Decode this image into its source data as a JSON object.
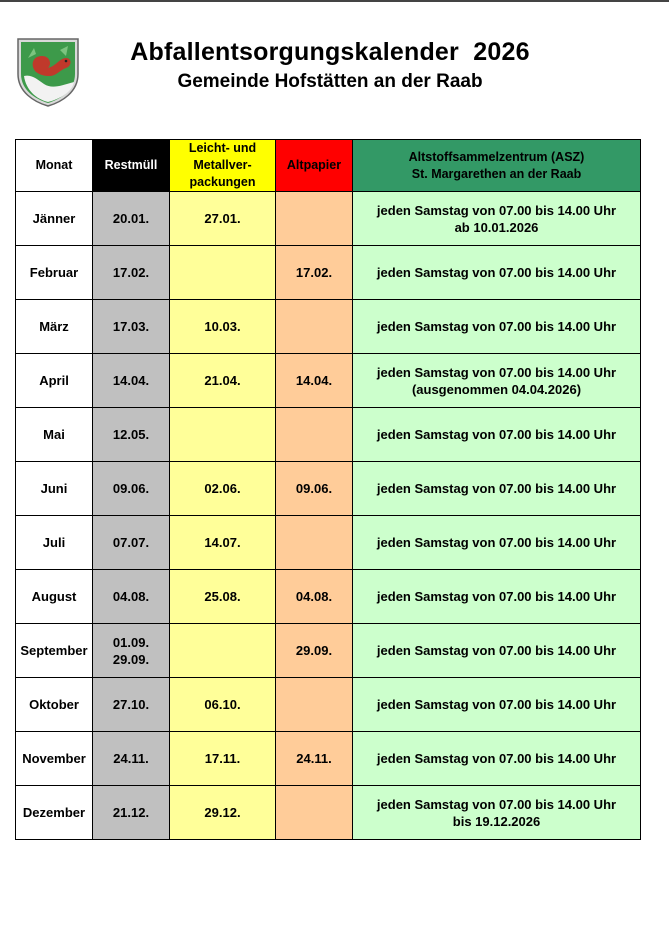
{
  "header": {
    "title": "Abfallentsorgungskalender  2026",
    "subtitle": "Gemeinde Hofstätten an der Raab"
  },
  "crest_icon": "municipal-coat-of-arms-squirrel-icon",
  "colors": {
    "restmuell_header": "#000000",
    "leicht_header": "#ffff00",
    "altpapier_header": "#ff0000",
    "asz_header": "#339966",
    "restmuell_cells": "#c0c0c0",
    "leicht_cells": "#ffff99",
    "altpapier_cells": "#ffcc99",
    "asz_cells": "#ccffcc"
  },
  "table": {
    "columns": {
      "monat": "Monat",
      "restmuell": "Restmüll",
      "leicht": [
        "Leicht- und",
        "Metallver-",
        "packungen"
      ],
      "altpapier": "Altpapier",
      "asz": [
        "Altstoffsammelzentrum (ASZ)",
        "St. Margarethen an der Raab"
      ]
    },
    "rows": [
      {
        "monat": "Jänner",
        "restmuell": [
          "20.01."
        ],
        "leicht": "27.01.",
        "altpapier": "",
        "asz": [
          "jeden Samstag von 07.00 bis 14.00 Uhr",
          "ab 10.01.2026"
        ]
      },
      {
        "monat": "Februar",
        "restmuell": [
          "17.02."
        ],
        "leicht": "",
        "altpapier": "17.02.",
        "asz": [
          "jeden Samstag von 07.00 bis 14.00 Uhr"
        ]
      },
      {
        "monat": "März",
        "restmuell": [
          "17.03."
        ],
        "leicht": "10.03.",
        "altpapier": "",
        "asz": [
          "jeden Samstag von 07.00 bis 14.00 Uhr"
        ]
      },
      {
        "monat": "April",
        "restmuell": [
          "14.04."
        ],
        "leicht": "21.04.",
        "altpapier": "14.04.",
        "asz": [
          "jeden Samstag von 07.00 bis 14.00 Uhr",
          "(ausgenommen 04.04.2026)"
        ]
      },
      {
        "monat": "Mai",
        "restmuell": [
          "12.05."
        ],
        "leicht": "",
        "altpapier": "",
        "asz": [
          "jeden Samstag von 07.00 bis 14.00 Uhr"
        ]
      },
      {
        "monat": "Juni",
        "restmuell": [
          "09.06."
        ],
        "leicht": "02.06.",
        "altpapier": "09.06.",
        "asz": [
          "jeden Samstag von 07.00 bis 14.00 Uhr"
        ]
      },
      {
        "monat": "Juli",
        "restmuell": [
          "07.07."
        ],
        "leicht": "14.07.",
        "altpapier": "",
        "asz": [
          "jeden Samstag von 07.00 bis 14.00 Uhr"
        ]
      },
      {
        "monat": "August",
        "restmuell": [
          "04.08."
        ],
        "leicht": "25.08.",
        "altpapier": "04.08.",
        "asz": [
          "jeden Samstag von 07.00 bis 14.00 Uhr"
        ]
      },
      {
        "monat": "September",
        "restmuell": [
          "01.09.",
          "29.09."
        ],
        "leicht": "",
        "altpapier": "29.09.",
        "asz": [
          "jeden Samstag von 07.00 bis 14.00 Uhr"
        ]
      },
      {
        "monat": "Oktober",
        "restmuell": [
          "27.10."
        ],
        "leicht": "06.10.",
        "altpapier": "",
        "asz": [
          "jeden Samstag von 07.00 bis 14.00 Uhr"
        ]
      },
      {
        "monat": "November",
        "restmuell": [
          "24.11."
        ],
        "leicht": "17.11.",
        "altpapier": "24.11.",
        "asz": [
          "jeden Samstag von 07.00 bis 14.00 Uhr"
        ]
      },
      {
        "monat": "Dezember",
        "restmuell": [
          "21.12."
        ],
        "leicht": "29.12.",
        "altpapier": "",
        "asz": [
          "jeden Samstag von 07.00 bis 14.00 Uhr",
          "bis 19.12.2026"
        ]
      }
    ]
  }
}
